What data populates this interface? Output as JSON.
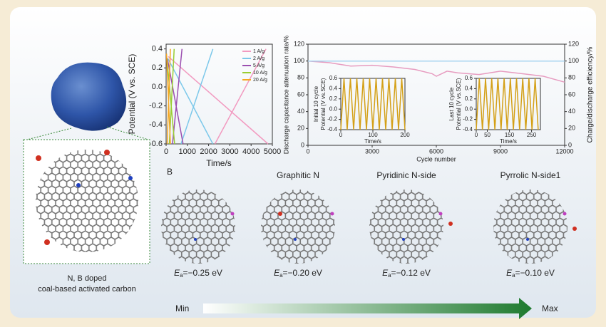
{
  "figure": {
    "left_caption": [
      "N, B doped",
      "coal-based activated carbon"
    ],
    "panel_b": {
      "label": "B",
      "structures": [
        {
          "title": null,
          "energy": {
            "symbol": "E",
            "subscript": "a",
            "text": "=−0.25 eV"
          }
        },
        {
          "title": "Graphitic N",
          "energy": {
            "symbol": "E",
            "subscript": "a",
            "text": "=−0.20 eV"
          }
        },
        {
          "title": "Pyridinic N-side",
          "energy": {
            "symbol": "E",
            "subscript": "a",
            "text": "=−0.12 eV"
          }
        },
        {
          "title": "Pyrrolic N-side1",
          "energy": {
            "symbol": "E",
            "subscript": "a",
            "text": "=−0.10 eV"
          }
        }
      ],
      "scale": {
        "start": "Min",
        "end": "Max"
      }
    }
  },
  "chart_data": [
    {
      "type": "line",
      "xlabel": "Time/s",
      "ylabel": "Potential (V vs. SCE)",
      "xlim": [
        0,
        5000
      ],
      "xticks": [
        0,
        1000,
        2000,
        3000,
        4000,
        5000
      ],
      "ylim": [
        -0.6,
        0.45
      ],
      "yticks": [
        -0.6,
        -0.4,
        -0.2,
        {
          "value": 0,
          "label": "0.0"
        },
        0.2,
        0.4
      ],
      "legend": "upper right",
      "series": [
        {
          "name": "1 A/g",
          "color": "#f29ac0",
          "x": [
            100,
            4800,
            4800,
            2300,
            4700
          ],
          "values": [
            0.32,
            -0.6,
            null,
            -0.6,
            0.4
          ]
        },
        {
          "name": "2 A/g",
          "color": "#7cc8ea",
          "x": [
            80,
            2200,
            2200,
            700,
            2200
          ],
          "values": [
            0.3,
            -0.6,
            null,
            -0.6,
            0.4
          ]
        },
        {
          "name": "5 A/g",
          "color": "#9b4fb0",
          "x": [
            60,
            800,
            800,
            300,
            750
          ],
          "values": [
            0.3,
            -0.6,
            null,
            -0.6,
            0.4
          ]
        },
        {
          "name": "10 A/g",
          "color": "#9acd32",
          "x": [
            40,
            400,
            400,
            150,
            380
          ],
          "values": [
            0.3,
            -0.6,
            null,
            -0.6,
            0.4
          ]
        },
        {
          "name": "20 A/g",
          "color": "#f5a623",
          "x": [
            20,
            200,
            200,
            50,
            200
          ],
          "values": [
            0.35,
            -0.6,
            null,
            -0.6,
            0.4
          ]
        }
      ]
    },
    {
      "type": "line",
      "xlabel": "Cycle number",
      "ylabel": "Discharge capacitance attenuation rate/%",
      "y2label": "Charge/discharge efficiency/%",
      "xlim": [
        0,
        12000
      ],
      "xticks": [
        0,
        3000,
        6000,
        9000,
        12000
      ],
      "ylim": [
        0,
        120
      ],
      "yticks": [
        0,
        20,
        40,
        60,
        80,
        100,
        120
      ],
      "y2lim": [
        0,
        120
      ],
      "y2ticks": [
        0,
        20,
        40,
        60,
        80,
        100,
        120
      ],
      "series": [
        {
          "color": "#e79cc0",
          "x": [
            0,
            1000,
            2000,
            3000,
            4000,
            5000,
            5800,
            6000,
            6500,
            7000,
            8000,
            9000,
            10000,
            11000,
            12000
          ],
          "values": [
            100,
            98,
            94,
            95,
            93,
            90,
            85,
            82,
            88,
            86,
            84,
            88,
            85,
            82,
            75
          ]
        },
        {
          "color": "#a8d4f0",
          "axis": "y2",
          "x": [
            0,
            3000,
            6000,
            9000,
            12000
          ],
          "values": [
            100,
            100,
            100,
            100,
            100
          ]
        }
      ]
    },
    {
      "type": "line",
      "title": "Initial 10 cycle",
      "xlabel": "Time/s",
      "ylabel": "Potential (V vs.SCE)",
      "xlim": [
        0,
        200
      ],
      "xticks": [
        0,
        100,
        200
      ],
      "ylim": [
        -0.4,
        0.6
      ],
      "yticks": [
        -0.4,
        -0.2,
        {
          "value": 0,
          "label": "0.0"
        },
        0.2,
        0.4,
        0.6
      ],
      "series": [
        {
          "color": "#d4a017",
          "x": [
            0,
            10,
            20,
            30,
            40,
            50,
            60,
            70,
            80,
            90,
            100,
            110,
            120,
            130,
            140,
            150,
            160,
            170,
            180,
            190,
            200
          ],
          "values": [
            -0.4,
            0.6,
            -0.4,
            0.6,
            -0.4,
            0.6,
            -0.4,
            0.6,
            -0.4,
            0.6,
            -0.4,
            0.6,
            -0.4,
            0.6,
            -0.4,
            0.6,
            -0.4,
            0.6,
            -0.4,
            0.6,
            -0.4
          ]
        }
      ]
    },
    {
      "type": "line",
      "title": "Last 10 cycle",
      "xlabel": "Time/s",
      "ylabel": "Potential (V vs.SCE)",
      "xlim": [
        0,
        290
      ],
      "xticks": [
        0,
        50,
        150,
        250
      ],
      "ylim": [
        -0.4,
        0.6
      ],
      "yticks": [
        -0.4,
        -0.2,
        {
          "value": 0,
          "label": "0.0"
        },
        0.2,
        0.4,
        0.6
      ],
      "series": [
        {
          "color": "#d4a017",
          "x": [
            0,
            14,
            28,
            42,
            56,
            70,
            84,
            98,
            112,
            126,
            140,
            154,
            168,
            182,
            196,
            210,
            224,
            238,
            252,
            266,
            280
          ],
          "values": [
            -0.4,
            0.6,
            -0.4,
            0.6,
            -0.4,
            0.6,
            -0.4,
            0.6,
            -0.4,
            0.6,
            -0.4,
            0.6,
            -0.4,
            0.6,
            -0.4,
            0.6,
            -0.4,
            0.6,
            -0.4,
            0.6,
            -0.4
          ]
        }
      ]
    }
  ]
}
